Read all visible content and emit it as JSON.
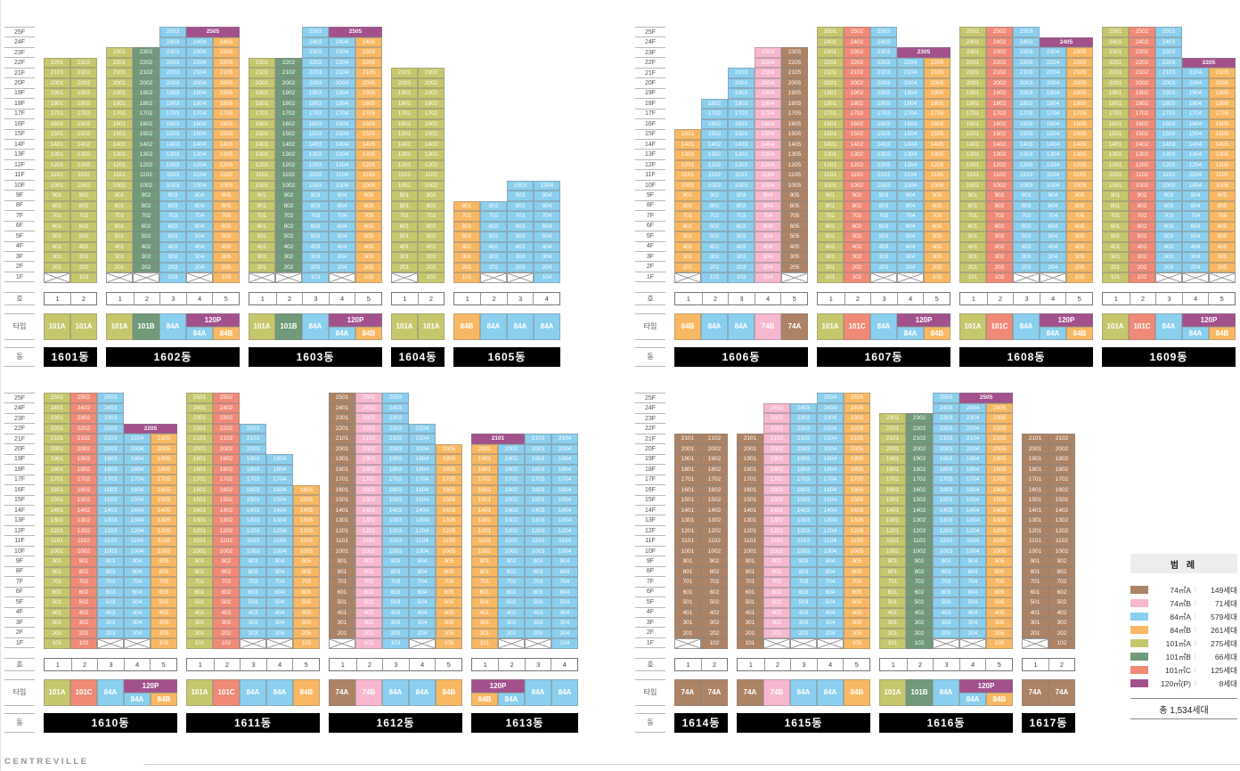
{
  "brand": "C E N T R E V I L L E",
  "axis": {
    "floors": [
      "25F",
      "24F",
      "23F",
      "22F",
      "21F",
      "20F",
      "19F",
      "18F",
      "17F",
      "16F",
      "15F",
      "14F",
      "13F",
      "12F",
      "11F",
      "10F",
      "9F",
      "8F",
      "7F",
      "6F",
      "5F",
      "4F",
      "3F",
      "2F",
      "1F"
    ],
    "labels": {
      "ho": "호",
      "type": "타입",
      "dong": "동"
    }
  },
  "types": {
    "74A": {
      "label": "74A",
      "color": "#ad8365"
    },
    "74B": {
      "label": "74B",
      "color": "#f6b7cf"
    },
    "84A": {
      "label": "84A",
      "color": "#8bcfee"
    },
    "84B": {
      "label": "84B",
      "color": "#f8b863"
    },
    "101A": {
      "label": "101A",
      "color": "#c6c76c"
    },
    "101B": {
      "label": "101B",
      "color": "#719a7a"
    },
    "101C": {
      "label": "101C",
      "color": "#f08a77"
    },
    "120P": {
      "label": "120P",
      "color": "#a3518d"
    }
  },
  "legend": {
    "title": "범 례",
    "total": "총 1,534세대",
    "items": [
      {
        "type": "74A",
        "label": "74㎡A",
        "count": "149세대"
      },
      {
        "type": "74B",
        "label": "74㎡B",
        "count": "71세대"
      },
      {
        "type": "84A",
        "label": "84㎡A",
        "count": "579세대"
      },
      {
        "type": "84B",
        "label": "84㎡B",
        "count": "261세대"
      },
      {
        "type": "101A",
        "label": "101㎡A",
        "count": "275세대"
      },
      {
        "type": "101B",
        "label": "101㎡B",
        "count": "66세대"
      },
      {
        "type": "101C",
        "label": "101㎡C",
        "count": "125세대"
      },
      {
        "type": "120P",
        "label": "120㎡(P)",
        "count": "8세대"
      }
    ]
  },
  "layout": {
    "groups": {
      "grp-tl": [
        "1601",
        "1602",
        "1603",
        "1604",
        "1605"
      ],
      "grp-tr": [
        "1606",
        "1607",
        "1608",
        "1609"
      ],
      "grp-bl": [
        "1610",
        "1611",
        "1612",
        "1613"
      ],
      "grp-br": [
        "1614",
        "1615",
        "1616",
        "1617"
      ]
    }
  },
  "buildings": {
    "1601": {
      "label": "1601동",
      "cols": [
        {
          "ho": "1",
          "type": "101A",
          "from": 2,
          "to": 22
        },
        {
          "ho": "2",
          "type": "101A",
          "from": 1,
          "to": 22
        }
      ],
      "pent": null
    },
    "1602": {
      "label": "1602동",
      "cols": [
        {
          "ho": "1",
          "type": "101A",
          "from": 2,
          "to": 23
        },
        {
          "ho": "2",
          "type": "101B",
          "from": 2,
          "to": 23
        },
        {
          "ho": "3",
          "type": "84A",
          "from": 1,
          "to": 25
        },
        {
          "ho": "4",
          "type": "84A",
          "from": 2,
          "to": 24
        },
        {
          "ho": "5",
          "type": "84B",
          "from": 1,
          "to": 24
        }
      ],
      "pent": {
        "floor": 25,
        "start": 4,
        "label": "2505"
      }
    },
    "1603": {
      "label": "1603동",
      "cols": [
        {
          "ho": "1",
          "type": "101A",
          "from": 2,
          "to": 22
        },
        {
          "ho": "2",
          "type": "101B",
          "from": 2,
          "to": 22
        },
        {
          "ho": "3",
          "type": "84A",
          "from": 1,
          "to": 25
        },
        {
          "ho": "4",
          "type": "84A",
          "from": 2,
          "to": 24
        },
        {
          "ho": "5",
          "type": "84B",
          "from": 1,
          "to": 24
        }
      ],
      "pent": {
        "floor": 25,
        "start": 4,
        "label": "2505"
      }
    },
    "1604": {
      "label": "1604동",
      "cols": [
        {
          "ho": "1",
          "type": "101A",
          "from": 2,
          "to": 21
        },
        {
          "ho": "2",
          "type": "101A",
          "from": 1,
          "to": 21
        }
      ],
      "pent": null
    },
    "1605": {
      "label": "1605동",
      "cols": [
        {
          "ho": "1",
          "type": "84B",
          "from": 1,
          "to": 8
        },
        {
          "ho": "2",
          "type": "84A",
          "from": 2,
          "to": 8
        },
        {
          "ho": "3",
          "type": "84A",
          "from": 2,
          "to": 10
        },
        {
          "ho": "4",
          "type": "84A",
          "from": 1,
          "to": 10
        }
      ],
      "pent": null
    },
    "1606": {
      "label": "1606동",
      "cols": [
        {
          "ho": "1",
          "type": "84B",
          "from": 2,
          "to": 15
        },
        {
          "ho": "2",
          "type": "84A",
          "from": 1,
          "to": 18
        },
        {
          "ho": "3",
          "type": "84A",
          "from": 1,
          "to": 21
        },
        {
          "ho": "4",
          "type": "74B",
          "from": 1,
          "to": 23
        },
        {
          "ho": "5",
          "type": "74A",
          "from": 2,
          "to": 23
        }
      ],
      "pent": null
    },
    "1607": {
      "label": "1607동",
      "cols": [
        {
          "ho": "1",
          "type": "101A",
          "from": 1,
          "to": 25
        },
        {
          "ho": "2",
          "type": "101C",
          "from": 1,
          "to": 25
        },
        {
          "ho": "3",
          "type": "84A",
          "from": 2,
          "to": 25
        },
        {
          "ho": "4",
          "type": "84A",
          "from": 2,
          "to": 22
        },
        {
          "ho": "5",
          "type": "84B",
          "from": 1,
          "to": 22
        }
      ],
      "pent": {
        "floor": 23,
        "start": 4,
        "label": "2305"
      }
    },
    "1608": {
      "label": "1608동",
      "cols": [
        {
          "ho": "1",
          "type": "101A",
          "from": 1,
          "to": 25
        },
        {
          "ho": "2",
          "type": "101C",
          "from": 1,
          "to": 25
        },
        {
          "ho": "3",
          "type": "84A",
          "from": 2,
          "to": 25
        },
        {
          "ho": "4",
          "type": "84A",
          "from": 2,
          "to": 23
        },
        {
          "ho": "5",
          "type": "84B",
          "from": 1,
          "to": 23
        }
      ],
      "pent": {
        "floor": 24,
        "start": 4,
        "label": "2405"
      }
    },
    "1609": {
      "label": "1609동",
      "cols": [
        {
          "ho": "1",
          "type": "101A",
          "from": 1,
          "to": 25
        },
        {
          "ho": "2",
          "type": "101C",
          "from": 1,
          "to": 25
        },
        {
          "ho": "3",
          "type": "84A",
          "from": 2,
          "to": 25
        },
        {
          "ho": "4",
          "type": "84A",
          "from": 2,
          "to": 21
        },
        {
          "ho": "5",
          "type": "84B",
          "from": 2,
          "to": 21
        }
      ],
      "pent": {
        "floor": 22,
        "start": 4,
        "label": "2205"
      }
    },
    "1610": {
      "label": "1610동",
      "cols": [
        {
          "ho": "1",
          "type": "101A",
          "from": 1,
          "to": 25
        },
        {
          "ho": "2",
          "type": "101C",
          "from": 1,
          "to": 25
        },
        {
          "ho": "3",
          "type": "84A",
          "from": 2,
          "to": 25
        },
        {
          "ho": "4",
          "type": "84A",
          "from": 2,
          "to": 21
        },
        {
          "ho": "5",
          "type": "84B",
          "from": 1,
          "to": 21
        }
      ],
      "pent": {
        "floor": 22,
        "start": 4,
        "label": "2205"
      }
    },
    "1611": {
      "label": "1611동",
      "cols": [
        {
          "ho": "1",
          "type": "101A",
          "from": 1,
          "to": 25
        },
        {
          "ho": "2",
          "type": "101C",
          "from": 1,
          "to": 25
        },
        {
          "ho": "3",
          "type": "84A",
          "from": 2,
          "to": 22
        },
        {
          "ho": "4",
          "type": "84A",
          "from": 2,
          "to": 19
        },
        {
          "ho": "5",
          "type": "84B",
          "from": 1,
          "to": 16
        }
      ],
      "pent": null
    },
    "1612": {
      "label": "1612동",
      "cols": [
        {
          "ho": "1",
          "type": "74A",
          "from": 2,
          "to": 25
        },
        {
          "ho": "2",
          "type": "74B",
          "from": 1,
          "to": 25
        },
        {
          "ho": "3",
          "type": "84A",
          "from": 1,
          "to": 25
        },
        {
          "ho": "4",
          "type": "84A",
          "from": 2,
          "to": 22
        },
        {
          "ho": "5",
          "type": "84B",
          "from": 1,
          "to": 20
        }
      ],
      "pent": null
    },
    "1613": {
      "label": "1613동",
      "cols": [
        {
          "ho": "1",
          "type": "84B",
          "from": 1,
          "to": 20
        },
        {
          "ho": "2",
          "type": "84A",
          "from": 2,
          "to": 20
        },
        {
          "ho": "3",
          "type": "84A",
          "from": 2,
          "to": 21
        },
        {
          "ho": "4",
          "type": "84A",
          "from": 1,
          "to": 21
        }
      ],
      "pent": {
        "floor": 21,
        "start": 1,
        "label": "2101"
      }
    },
    "1614": {
      "label": "1614동",
      "cols": [
        {
          "ho": "1",
          "type": "74A",
          "from": 2,
          "to": 21
        },
        {
          "ho": "2",
          "type": "74A",
          "from": 1,
          "to": 21
        }
      ],
      "pent": null
    },
    "1615": {
      "label": "1615동",
      "cols": [
        {
          "ho": "1",
          "type": "74A",
          "from": 1,
          "to": 21
        },
        {
          "ho": "2",
          "type": "74B",
          "from": 2,
          "to": 24
        },
        {
          "ho": "3",
          "type": "84A",
          "from": 2,
          "to": 24
        },
        {
          "ho": "4",
          "type": "84A",
          "from": 2,
          "to": 25
        },
        {
          "ho": "5",
          "type": "84B",
          "from": 1,
          "to": 25
        }
      ],
      "pent": null
    },
    "1616": {
      "label": "1616동",
      "cols": [
        {
          "ho": "1",
          "type": "101A",
          "from": 1,
          "to": 23
        },
        {
          "ho": "2",
          "type": "101B",
          "from": 1,
          "to": 23
        },
        {
          "ho": "3",
          "type": "84A",
          "from": 2,
          "to": 25
        },
        {
          "ho": "4",
          "type": "84A",
          "from": 2,
          "to": 24
        },
        {
          "ho": "5",
          "type": "84B",
          "from": 1,
          "to": 24
        }
      ],
      "pent": {
        "floor": 25,
        "start": 4,
        "label": "2505"
      }
    },
    "1617": {
      "label": "1617동",
      "cols": [
        {
          "ho": "1",
          "type": "74A",
          "from": 2,
          "to": 21
        },
        {
          "ho": "2",
          "type": "74A",
          "from": 1,
          "to": 21
        }
      ],
      "pent": null
    }
  }
}
